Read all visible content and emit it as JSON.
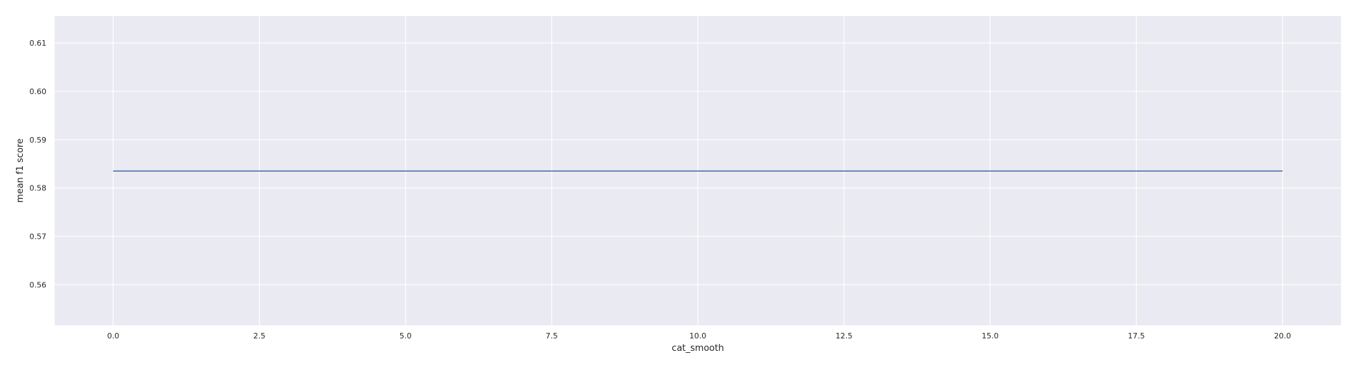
{
  "chart_data": {
    "type": "line",
    "title": "",
    "xlabel": "cat_smooth",
    "ylabel": "mean f1 score",
    "xlim": [
      -1.0,
      21.0
    ],
    "ylim": [
      0.5516,
      0.6156
    ],
    "x_ticks": [
      0.0,
      2.5,
      5.0,
      7.5,
      10.0,
      12.5,
      15.0,
      17.5,
      20.0
    ],
    "x_tick_labels": [
      "0.0",
      "2.5",
      "5.0",
      "7.5",
      "10.0",
      "12.5",
      "15.0",
      "17.5",
      "20.0"
    ],
    "y_ticks": [
      0.56,
      0.57,
      0.58,
      0.59,
      0.6,
      0.61
    ],
    "y_tick_labels": [
      "0.56",
      "0.57",
      "0.58",
      "0.59",
      "0.60",
      "0.61"
    ],
    "grid": true,
    "series": [
      {
        "x": [
          0.0,
          20.0
        ],
        "y": [
          0.5835,
          0.5835
        ],
        "color": "#4c72b0"
      }
    ],
    "colors": {
      "plot_background": "#eaeaf2",
      "grid": "#ffffff",
      "line": "#4c72b0"
    }
  }
}
